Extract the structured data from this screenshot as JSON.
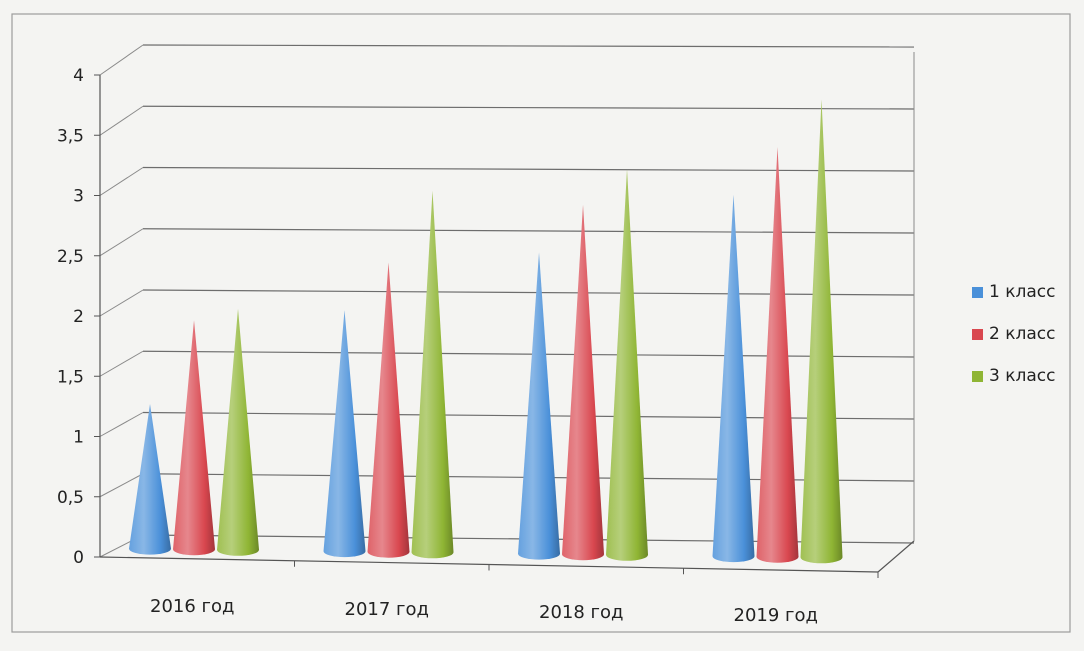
{
  "chart_data": {
    "type": "bar",
    "shape": "cone-3d",
    "categories": [
      "2016 год",
      "2017 год",
      "2018 год",
      "2019 год"
    ],
    "series": [
      {
        "name": "1 класс",
        "values": [
          1.2,
          2.0,
          2.5,
          3.0
        ],
        "color": "#4a90d9"
      },
      {
        "name": "2 класс",
        "values": [
          1.9,
          2.4,
          2.9,
          3.4
        ],
        "color": "#d9474f"
      },
      {
        "name": "3 класс",
        "values": [
          2.0,
          3.0,
          3.2,
          3.8
        ],
        "color": "#8fb534"
      }
    ],
    "yticks": [
      "0",
      "0,5",
      "1",
      "1,5",
      "2",
      "2,5",
      "3",
      "3,5",
      "4"
    ],
    "ylim": [
      0,
      4
    ],
    "grid": true,
    "legend_position": "right"
  }
}
